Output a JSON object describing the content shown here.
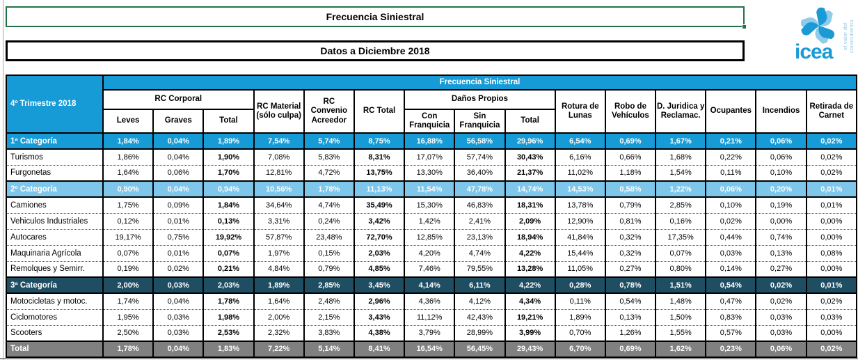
{
  "titles": {
    "main": "Frecuencia Siniestral",
    "sub": "Datos a Diciembre 2018"
  },
  "logo": {
    "wordmark": "icea",
    "tagline": "el valor del conocimiento",
    "brand_blue": "#1b9ad5",
    "brand_light_blue": "#8fcbea"
  },
  "colors": {
    "cat1_blue": "#169bd7",
    "cat2_light_blue": "#7ec6ea",
    "cat3_navy": "#1f4e63",
    "total_gray": "#808080",
    "title_border_green": "#217346"
  },
  "table": {
    "header": {
      "banner": "Frecuencia Siniestral",
      "corner": "4º Trimestre 2018",
      "groups": {
        "rc_corporal": "RC Corporal",
        "danos_propios": "Daños Propios"
      },
      "cols": {
        "leves": "Leves",
        "graves": "Graves",
        "total_rc_corporal": "Total",
        "rc_material": "RC Material (sólo culpa)",
        "rc_convenio": "RC Convenio Acreedor",
        "rc_total": "RC Total",
        "con_franquicia": "Con Franquicia",
        "sin_franquicia": "Sin Franquicia",
        "total_danos": "Total",
        "rotura_lunas": "Rotura de Lunas",
        "robo_vehiculos": "Robo de Vehículos",
        "d_juridica": "D. Juridica y Reclamac.",
        "ocupantes": "Ocupantes",
        "incendios": "Incendios",
        "retirada_carnet": "Retirada de Carnet"
      }
    },
    "rows": [
      {
        "label": "1ª Categoría",
        "type": "cat1",
        "divider": "solid",
        "values": [
          "1,84%",
          "0,04%",
          "1,89%",
          "7,54%",
          "5,74%",
          "8,75%",
          "16,88%",
          "56,58%",
          "29,96%",
          "6,54%",
          "0,69%",
          "1,67%",
          "0,21%",
          "0,06%",
          "0,02%"
        ]
      },
      {
        "label": "Turismos",
        "type": "data",
        "divider": "solid",
        "values": [
          "1,86%",
          "0,04%",
          "1,90%",
          "7,08%",
          "5,83%",
          "8,31%",
          "17,07%",
          "57,74%",
          "30,43%",
          "6,16%",
          "0,66%",
          "1,68%",
          "0,22%",
          "0,06%",
          "0,02%"
        ]
      },
      {
        "label": "Furgonetas",
        "type": "data",
        "divider": "dot",
        "values": [
          "1,64%",
          "0,06%",
          "1,70%",
          "12,81%",
          "4,72%",
          "13,75%",
          "13,30%",
          "36,40%",
          "21,37%",
          "11,02%",
          "1,18%",
          "1,54%",
          "0,11%",
          "0,10%",
          "0,02%"
        ]
      },
      {
        "label": "2º Categoría",
        "type": "cat2",
        "divider": "solid",
        "values": [
          "0,90%",
          "0,04%",
          "0,94%",
          "10,56%",
          "1,78%",
          "11,13%",
          "11,54%",
          "47,78%",
          "14,74%",
          "14,53%",
          "0,58%",
          "1,22%",
          "0,06%",
          "0,20%",
          "0,01%"
        ]
      },
      {
        "label": "Camiones",
        "type": "data",
        "divider": "solid",
        "values": [
          "1,75%",
          "0,09%",
          "1,84%",
          "34,64%",
          "4,74%",
          "35,49%",
          "15,30%",
          "46,83%",
          "18,31%",
          "13,78%",
          "0,79%",
          "2,85%",
          "0,10%",
          "0,19%",
          "0,01%"
        ]
      },
      {
        "label": "Vehiculos Industriales",
        "type": "data",
        "divider": "dot",
        "values": [
          "0,12%",
          "0,01%",
          "0,13%",
          "3,31%",
          "0,24%",
          "3,42%",
          "1,42%",
          "2,41%",
          "2,09%",
          "12,90%",
          "0,81%",
          "0,16%",
          "0,02%",
          "0,00%",
          "0,00%"
        ]
      },
      {
        "label": "Autocares",
        "type": "data",
        "divider": "dot",
        "values": [
          "19,17%",
          "0,75%",
          "19,92%",
          "57,87%",
          "23,48%",
          "72,70%",
          "12,85%",
          "23,13%",
          "18,94%",
          "41,84%",
          "0,32%",
          "17,35%",
          "0,44%",
          "0,74%",
          "0,00%"
        ]
      },
      {
        "label": "Maquinaria Agrícola",
        "type": "data",
        "divider": "dot",
        "values": [
          "0,07%",
          "0,01%",
          "0,07%",
          "1,97%",
          "0,15%",
          "2,03%",
          "4,20%",
          "4,74%",
          "4,22%",
          "15,44%",
          "0,32%",
          "0,07%",
          "0,03%",
          "0,13%",
          "0,08%"
        ]
      },
      {
        "label": "Remolques y Semirr.",
        "type": "data",
        "divider": "dot",
        "values": [
          "0,19%",
          "0,02%",
          "0,21%",
          "4,84%",
          "0,79%",
          "4,85%",
          "7,46%",
          "79,55%",
          "13,28%",
          "11,05%",
          "0,27%",
          "0,80%",
          "0,14%",
          "0,27%",
          "0,00%"
        ]
      },
      {
        "label": "3ª Categoría",
        "type": "cat3",
        "divider": "solid",
        "values": [
          "2,00%",
          "0,03%",
          "2,03%",
          "1,89%",
          "2,85%",
          "3,45%",
          "4,14%",
          "6,11%",
          "4,22%",
          "0,28%",
          "0,78%",
          "1,51%",
          "0,54%",
          "0,02%",
          "0,01%"
        ]
      },
      {
        "label": "Motocicletas y motoc.",
        "type": "data",
        "divider": "solid",
        "values": [
          "1,74%",
          "0,04%",
          "1,78%",
          "1,64%",
          "2,48%",
          "2,96%",
          "4,36%",
          "4,12%",
          "4,34%",
          "0,11%",
          "0,54%",
          "1,48%",
          "0,47%",
          "0,02%",
          "0,02%"
        ]
      },
      {
        "label": "Ciclomotores",
        "type": "data",
        "divider": "dot",
        "values": [
          "1,95%",
          "0,03%",
          "1,98%",
          "2,00%",
          "2,15%",
          "3,43%",
          "11,12%",
          "42,43%",
          "19,21%",
          "1,89%",
          "0,13%",
          "1,50%",
          "0,83%",
          "0,03%",
          "0,03%"
        ]
      },
      {
        "label": "Scooters",
        "type": "data",
        "divider": "dot",
        "values": [
          "2,50%",
          "0,03%",
          "2,53%",
          "2,32%",
          "3,83%",
          "4,38%",
          "3,79%",
          "28,99%",
          "3,99%",
          "0,70%",
          "1,26%",
          "1,55%",
          "0,57%",
          "0,03%",
          "0,00%"
        ]
      },
      {
        "label": "Total",
        "type": "total",
        "divider": "solid",
        "values": [
          "1,78%",
          "0,04%",
          "1,83%",
          "7,22%",
          "5,14%",
          "8,41%",
          "16,54%",
          "56,45%",
          "29,43%",
          "6,70%",
          "0,69%",
          "1,62%",
          "0,23%",
          "0,06%",
          "0,02%"
        ]
      }
    ]
  }
}
